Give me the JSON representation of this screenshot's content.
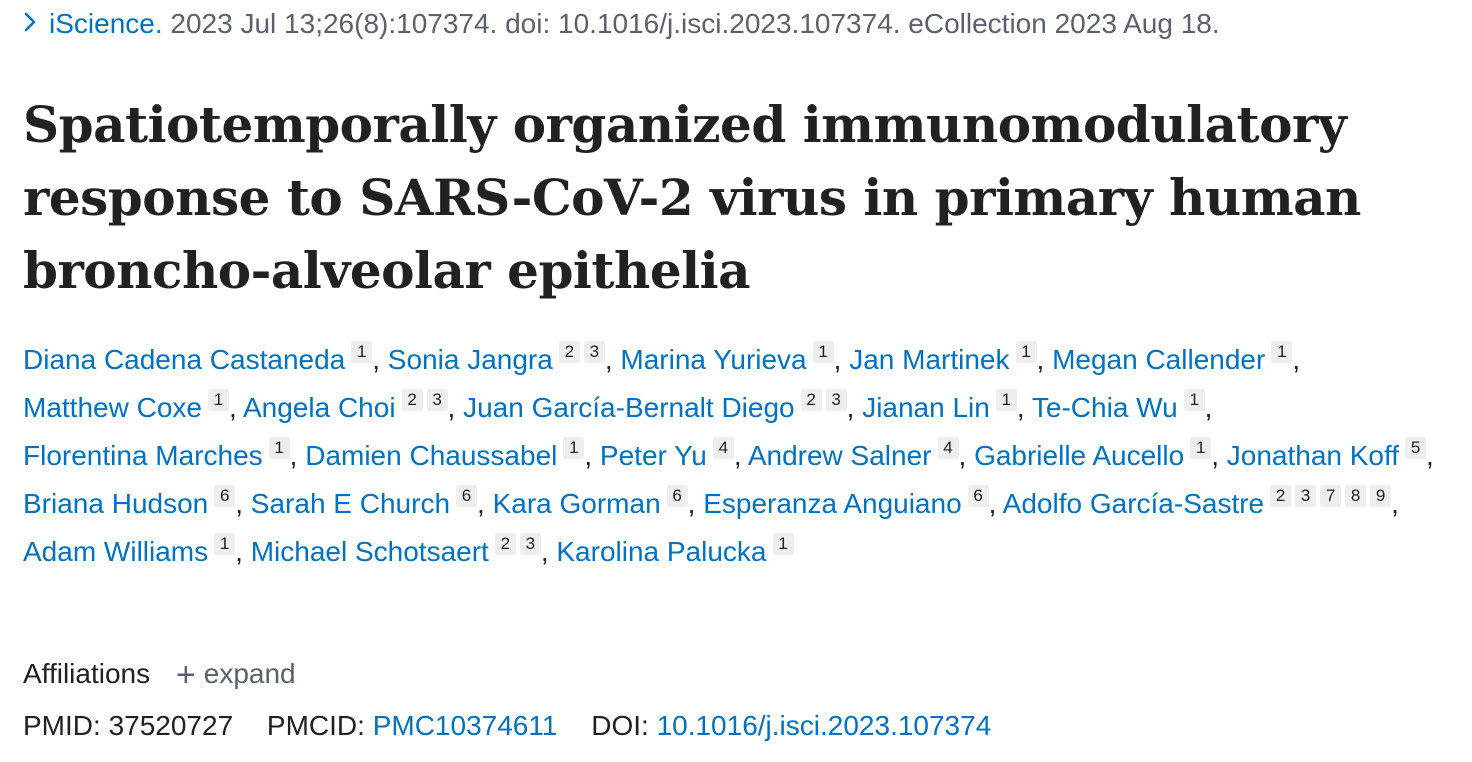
{
  "citation": {
    "journal": "iScience.",
    "details": "2023 Jul 13;26(8):107374. doi: 10.1016/j.isci.2023.107374. eCollection 2023 Aug 18."
  },
  "title": "Spatiotemporally organized immunomodulatory response to SARS-CoV-2 virus in primary human broncho-alveolar epithelia",
  "authors": [
    {
      "name": "Diana Cadena Castaneda",
      "affs": [
        "1"
      ]
    },
    {
      "name": "Sonia Jangra",
      "affs": [
        "2",
        "3"
      ]
    },
    {
      "name": "Marina Yurieva",
      "affs": [
        "1"
      ]
    },
    {
      "name": "Jan Martinek",
      "affs": [
        "1"
      ]
    },
    {
      "name": "Megan Callender",
      "affs": [
        "1"
      ]
    },
    {
      "name": "Matthew Coxe",
      "affs": [
        "1"
      ]
    },
    {
      "name": "Angela Choi",
      "affs": [
        "2",
        "3"
      ]
    },
    {
      "name": "Juan García-Bernalt Diego",
      "affs": [
        "2",
        "3"
      ]
    },
    {
      "name": "Jianan Lin",
      "affs": [
        "1"
      ]
    },
    {
      "name": "Te-Chia Wu",
      "affs": [
        "1"
      ]
    },
    {
      "name": "Florentina Marches",
      "affs": [
        "1"
      ]
    },
    {
      "name": "Damien Chaussabel",
      "affs": [
        "1"
      ]
    },
    {
      "name": "Peter Yu",
      "affs": [
        "4"
      ]
    },
    {
      "name": "Andrew Salner",
      "affs": [
        "4"
      ]
    },
    {
      "name": "Gabrielle Aucello",
      "affs": [
        "1"
      ]
    },
    {
      "name": "Jonathan Koff",
      "affs": [
        "5"
      ]
    },
    {
      "name": "Briana Hudson",
      "affs": [
        "6"
      ]
    },
    {
      "name": "Sarah E Church",
      "affs": [
        "6"
      ]
    },
    {
      "name": "Kara Gorman",
      "affs": [
        "6"
      ]
    },
    {
      "name": "Esperanza Anguiano",
      "affs": [
        "6"
      ]
    },
    {
      "name": "Adolfo García-Sastre",
      "affs": [
        "2",
        "3",
        "7",
        "8",
        "9"
      ]
    },
    {
      "name": "Adam Williams",
      "affs": [
        "1"
      ]
    },
    {
      "name": "Michael Schotsaert",
      "affs": [
        "2",
        "3"
      ]
    },
    {
      "name": "Karolina Palucka",
      "affs": [
        "1"
      ]
    }
  ],
  "affiliations": {
    "label": "Affiliations",
    "expand_label": "expand"
  },
  "ids": {
    "pmid_label": "PMID:",
    "pmid": "37520727",
    "pmcid_label": "PMCID:",
    "pmcid": "PMC10374611",
    "doi_label": "DOI:",
    "doi": "10.1016/j.isci.2023.107374"
  },
  "colors": {
    "link": "#0071bc",
    "text": "#212121",
    "muted": "#5b616b",
    "badge_bg": "#eeeeee"
  }
}
